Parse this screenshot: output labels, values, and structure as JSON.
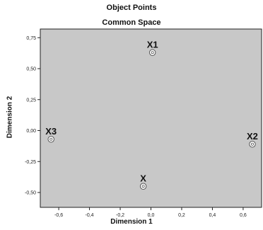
{
  "chart_data": {
    "type": "scatter",
    "title": "Object Points",
    "subtitle": "Common Space",
    "xlabel": "Dimension 1",
    "ylabel": "Dimension 2",
    "xlim": [
      -0.72,
      0.72
    ],
    "ylim": [
      -0.62,
      0.82
    ],
    "x_ticks": [
      {
        "value": -0.6,
        "label": "-0,6"
      },
      {
        "value": -0.4,
        "label": "-0,4"
      },
      {
        "value": -0.2,
        "label": "-0,2"
      },
      {
        "value": 0.0,
        "label": "0,0"
      },
      {
        "value": 0.2,
        "label": "0,2"
      },
      {
        "value": 0.4,
        "label": "0,4"
      },
      {
        "value": 0.6,
        "label": "0,6"
      }
    ],
    "y_ticks": [
      {
        "value": 0.75,
        "label": "0,75"
      },
      {
        "value": 0.5,
        "label": "0,50"
      },
      {
        "value": 0.25,
        "label": "0,25"
      },
      {
        "value": 0.0,
        "label": "0,00"
      },
      {
        "value": -0.25,
        "label": "-0,25"
      },
      {
        "value": -0.5,
        "label": "-0,50"
      }
    ],
    "points": [
      {
        "label": "X1",
        "x": 0.01,
        "y": 0.63
      },
      {
        "label": "X3",
        "x": -0.65,
        "y": -0.07
      },
      {
        "label": "X2",
        "x": 0.66,
        "y": -0.11
      },
      {
        "label": "X",
        "x": -0.05,
        "y": -0.45
      }
    ],
    "grid": false,
    "colors": {
      "plot_background": "#c8c8c8",
      "marker": "#ffffff"
    }
  }
}
